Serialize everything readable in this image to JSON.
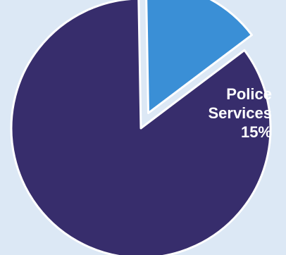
{
  "chart_data": {
    "type": "pie",
    "title": "",
    "slices": [
      {
        "label": "",
        "value": 85,
        "color": "#372d6c"
      },
      {
        "label": "Police Services",
        "label_lines": [
          "Police",
          "Services"
        ],
        "value_label": "15%",
        "value": 15,
        "color": "#3a8fd6",
        "exploded": true
      }
    ],
    "legend": "none",
    "border_color": "#ffffff",
    "background": "#dce8f5"
  }
}
